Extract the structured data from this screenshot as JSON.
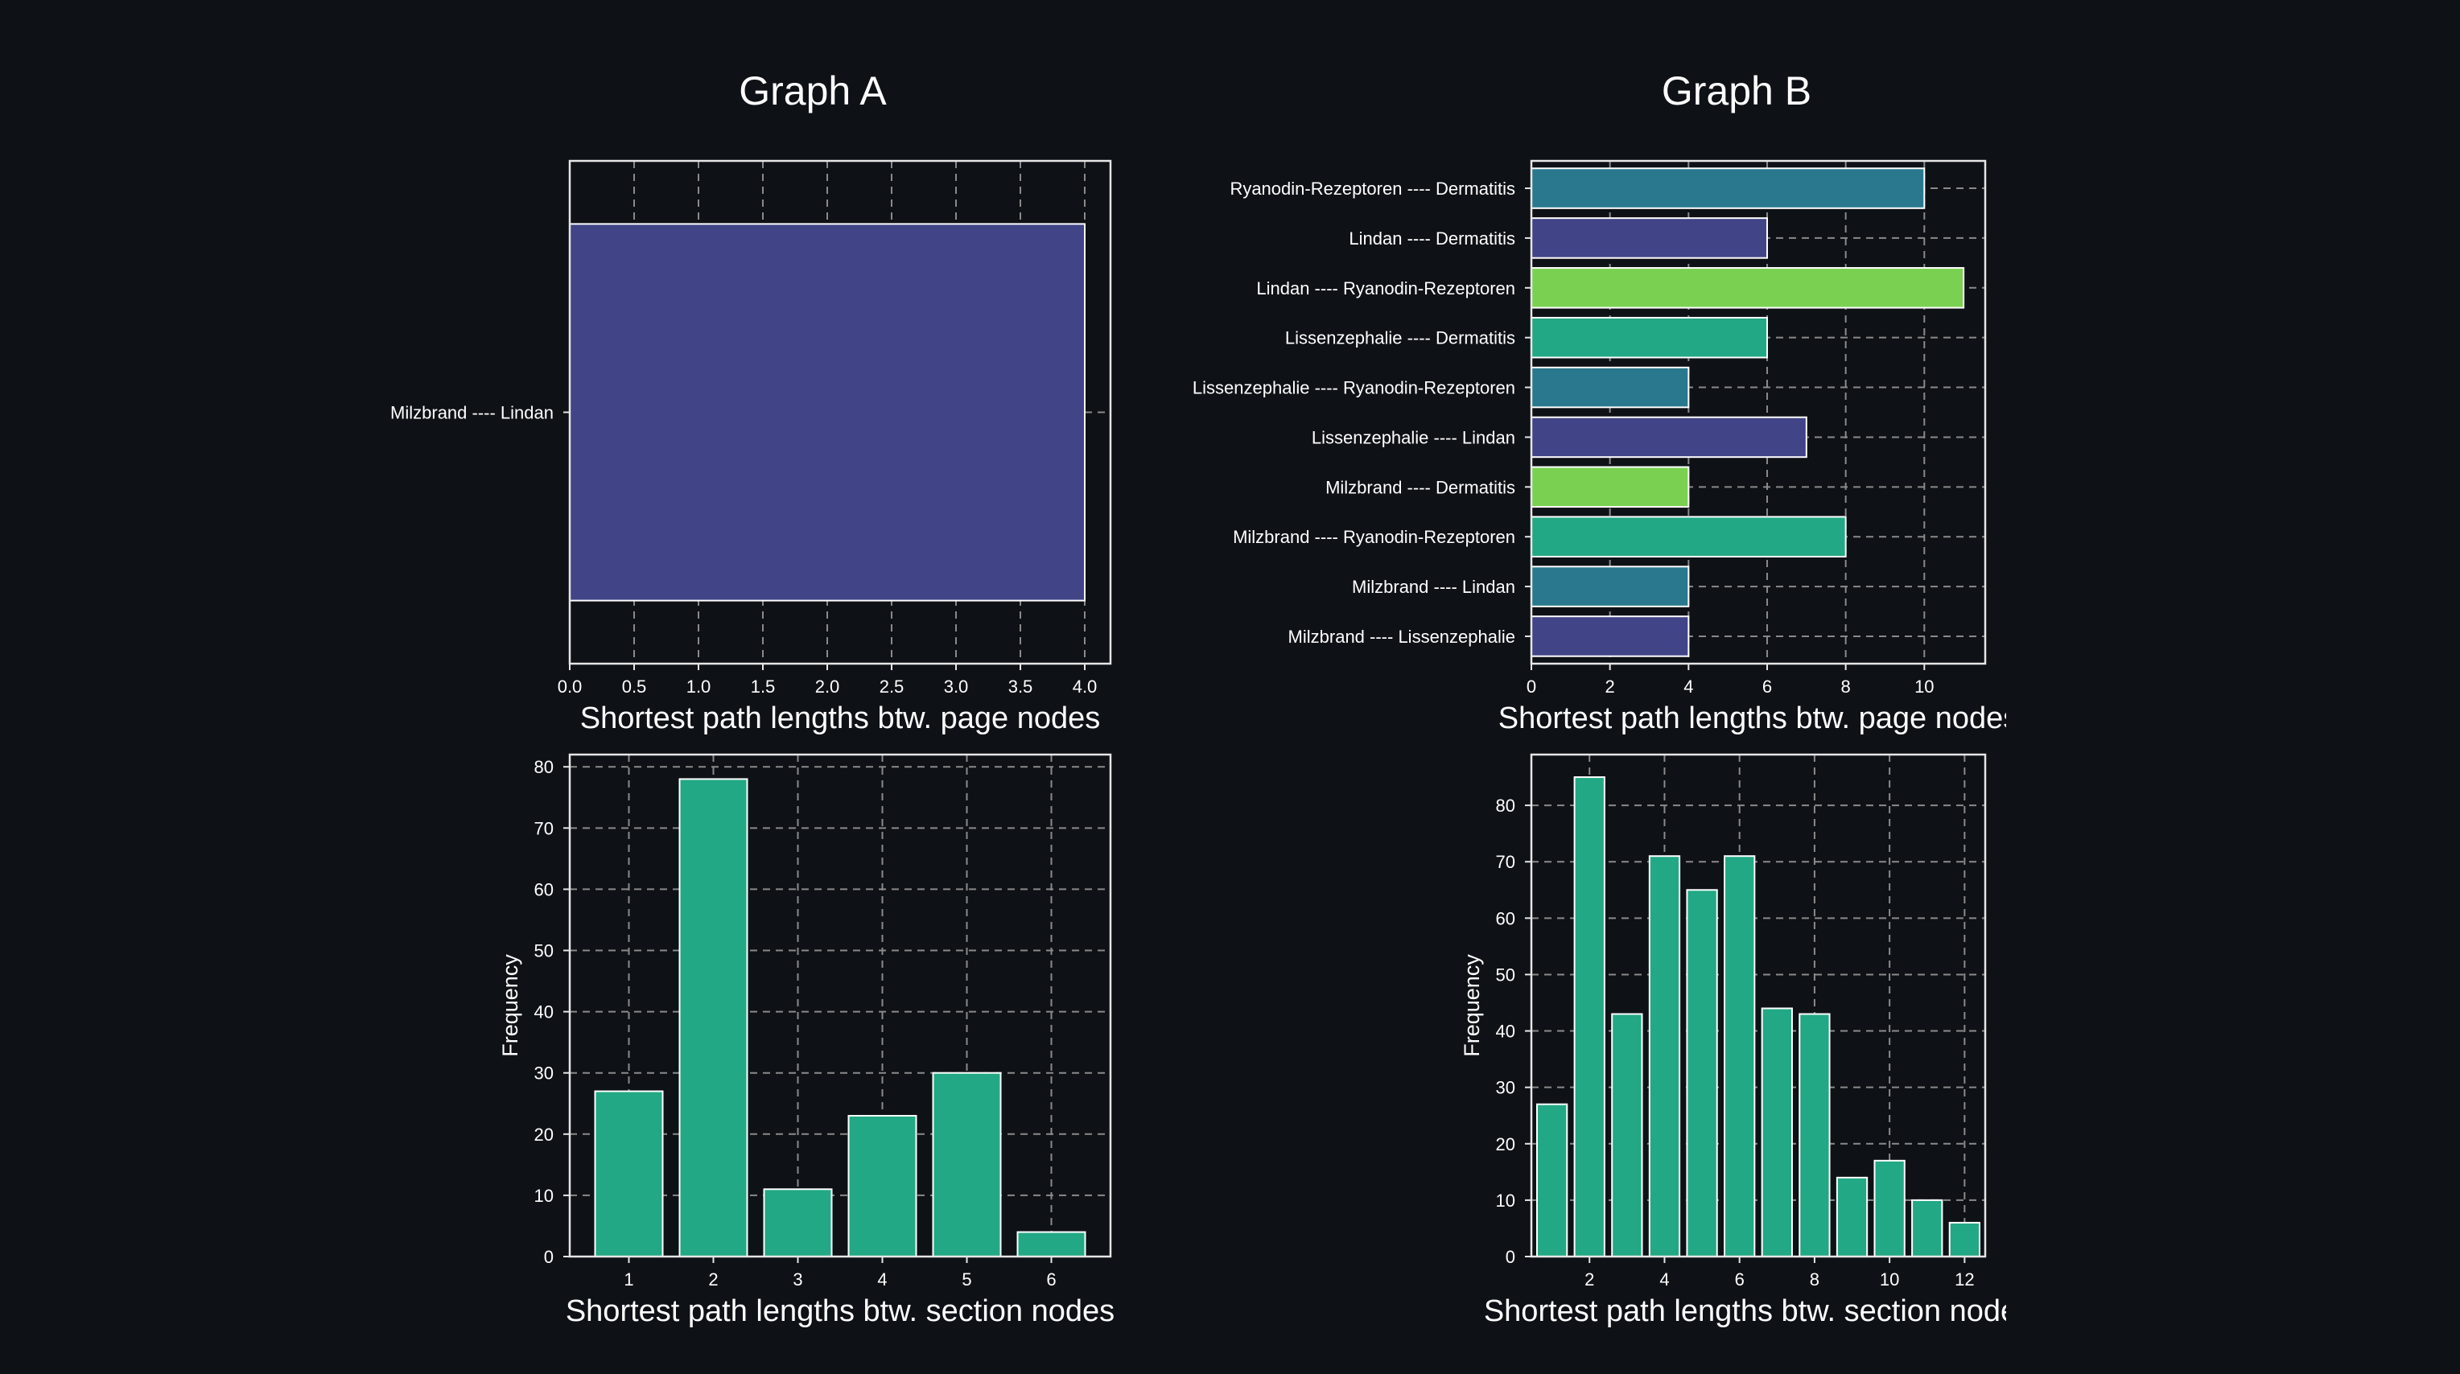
{
  "colors": {
    "background": "#0e1116",
    "axes": "#e6e6e6",
    "grid": "#8a8a8a",
    "text": "#ffffff",
    "bar_edge": "#ffffff",
    "hist_fill": "#22a884",
    "purple": "#414487",
    "blue": "#2a788e",
    "green": "#22a884",
    "lime": "#7ad151"
  },
  "panels": {
    "graph_a": {
      "title": "Graph A"
    },
    "graph_b": {
      "title": "Graph B"
    }
  },
  "chart_data": [
    {
      "id": "a-top",
      "type": "bar",
      "orientation": "horizontal",
      "categories": [
        "Milzbrand ---- Lindan"
      ],
      "values": [
        4
      ],
      "colors": [
        "purple"
      ],
      "xlabel": "Shortest path lengths btw. page nodes",
      "ylabel": "",
      "xlim": [
        0,
        4.2
      ],
      "xticks": [
        0,
        0.5,
        1,
        1.5,
        2,
        2.5,
        3,
        3.5,
        4
      ],
      "xtick_labels": [
        "0.0",
        "0.5",
        "1.0",
        "1.5",
        "2.0",
        "2.5",
        "3.0",
        "3.5",
        "4.0"
      ],
      "grid": true
    },
    {
      "id": "a-bottom",
      "type": "bar",
      "x": [
        1,
        2,
        3,
        4,
        5,
        6
      ],
      "values": [
        27,
        78,
        11,
        23,
        30,
        4
      ],
      "xlabel": "Shortest path lengths btw. section nodes",
      "ylabel": "Frequency",
      "xlim": [
        0.3,
        6.7
      ],
      "ylim": [
        0,
        82
      ],
      "xticks": [
        1,
        2,
        3,
        4,
        5,
        6
      ],
      "yticks": [
        0,
        10,
        20,
        30,
        40,
        50,
        60,
        70,
        80
      ],
      "grid": true
    },
    {
      "id": "b-top",
      "type": "bar",
      "orientation": "horizontal",
      "categories": [
        "Ryanodin-Rezeptoren ---- Dermatitis",
        "Lindan ---- Dermatitis",
        "Lindan ---- Ryanodin-Rezeptoren",
        "Lissenzephalie ---- Dermatitis",
        "Lissenzephalie ---- Ryanodin-Rezeptoren",
        "Lissenzephalie ---- Lindan",
        "Milzbrand ---- Dermatitis",
        "Milzbrand ---- Ryanodin-Rezeptoren",
        "Milzbrand ---- Lindan",
        "Milzbrand ---- Lissenzephalie"
      ],
      "values": [
        10,
        6,
        11,
        6,
        4,
        7,
        4,
        8,
        4,
        4
      ],
      "colors": [
        "blue",
        "purple",
        "lime",
        "green",
        "blue",
        "purple",
        "lime",
        "green",
        "blue",
        "purple"
      ],
      "xlabel": "Shortest path lengths btw. page nodes",
      "ylabel": "",
      "xlim": [
        0,
        11.55
      ],
      "xticks": [
        0,
        2,
        4,
        6,
        8,
        10
      ],
      "grid": true
    },
    {
      "id": "b-bottom",
      "type": "bar",
      "x": [
        1,
        2,
        3,
        4,
        5,
        6,
        7,
        8,
        9,
        10,
        11,
        12
      ],
      "values": [
        27,
        85,
        43,
        71,
        65,
        71,
        44,
        43,
        14,
        17,
        10,
        6
      ],
      "xlabel": "Shortest path lengths btw. section nodes",
      "ylabel": "Frequency",
      "xlim": [
        0.45,
        12.55
      ],
      "ylim": [
        0,
        89
      ],
      "xticks": [
        2,
        4,
        6,
        8,
        10,
        12
      ],
      "yticks": [
        0,
        10,
        20,
        30,
        40,
        50,
        60,
        70,
        80
      ],
      "grid": true
    }
  ]
}
